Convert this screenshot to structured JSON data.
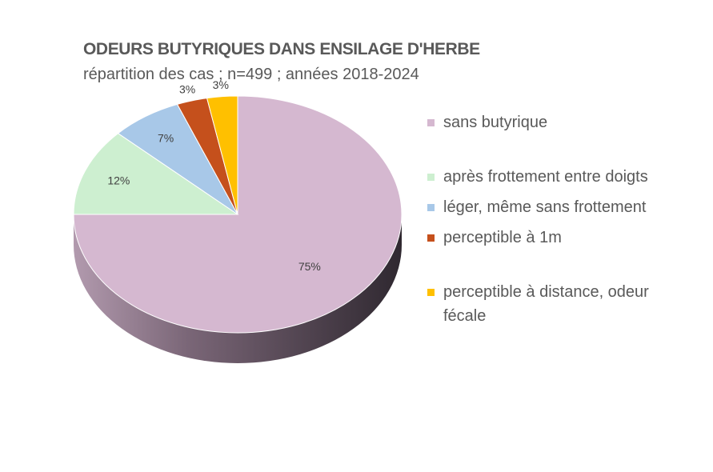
{
  "chart_data": {
    "type": "pie",
    "title": "ODEURS BUTYRIQUES DANS ENSILAGE D'HERBE",
    "subtitle": "répartition des cas ; n=499 ; années 2018-2024",
    "categories": [
      "sans butyrique",
      "après frottement entre doigts",
      "léger, même sans frottement",
      "perceptible à 1m",
      "perceptible à distance, odeur fécale"
    ],
    "values": [
      75,
      12,
      7,
      3,
      3
    ],
    "data_labels": [
      "75%",
      "12%",
      "7%",
      "3%",
      "3%"
    ],
    "colors": [
      "#D5B8D0",
      "#CDEFD0",
      "#A8C8E8",
      "#C5501C",
      "#FFC000"
    ],
    "legend_position": "right",
    "style": "3d-pie"
  }
}
